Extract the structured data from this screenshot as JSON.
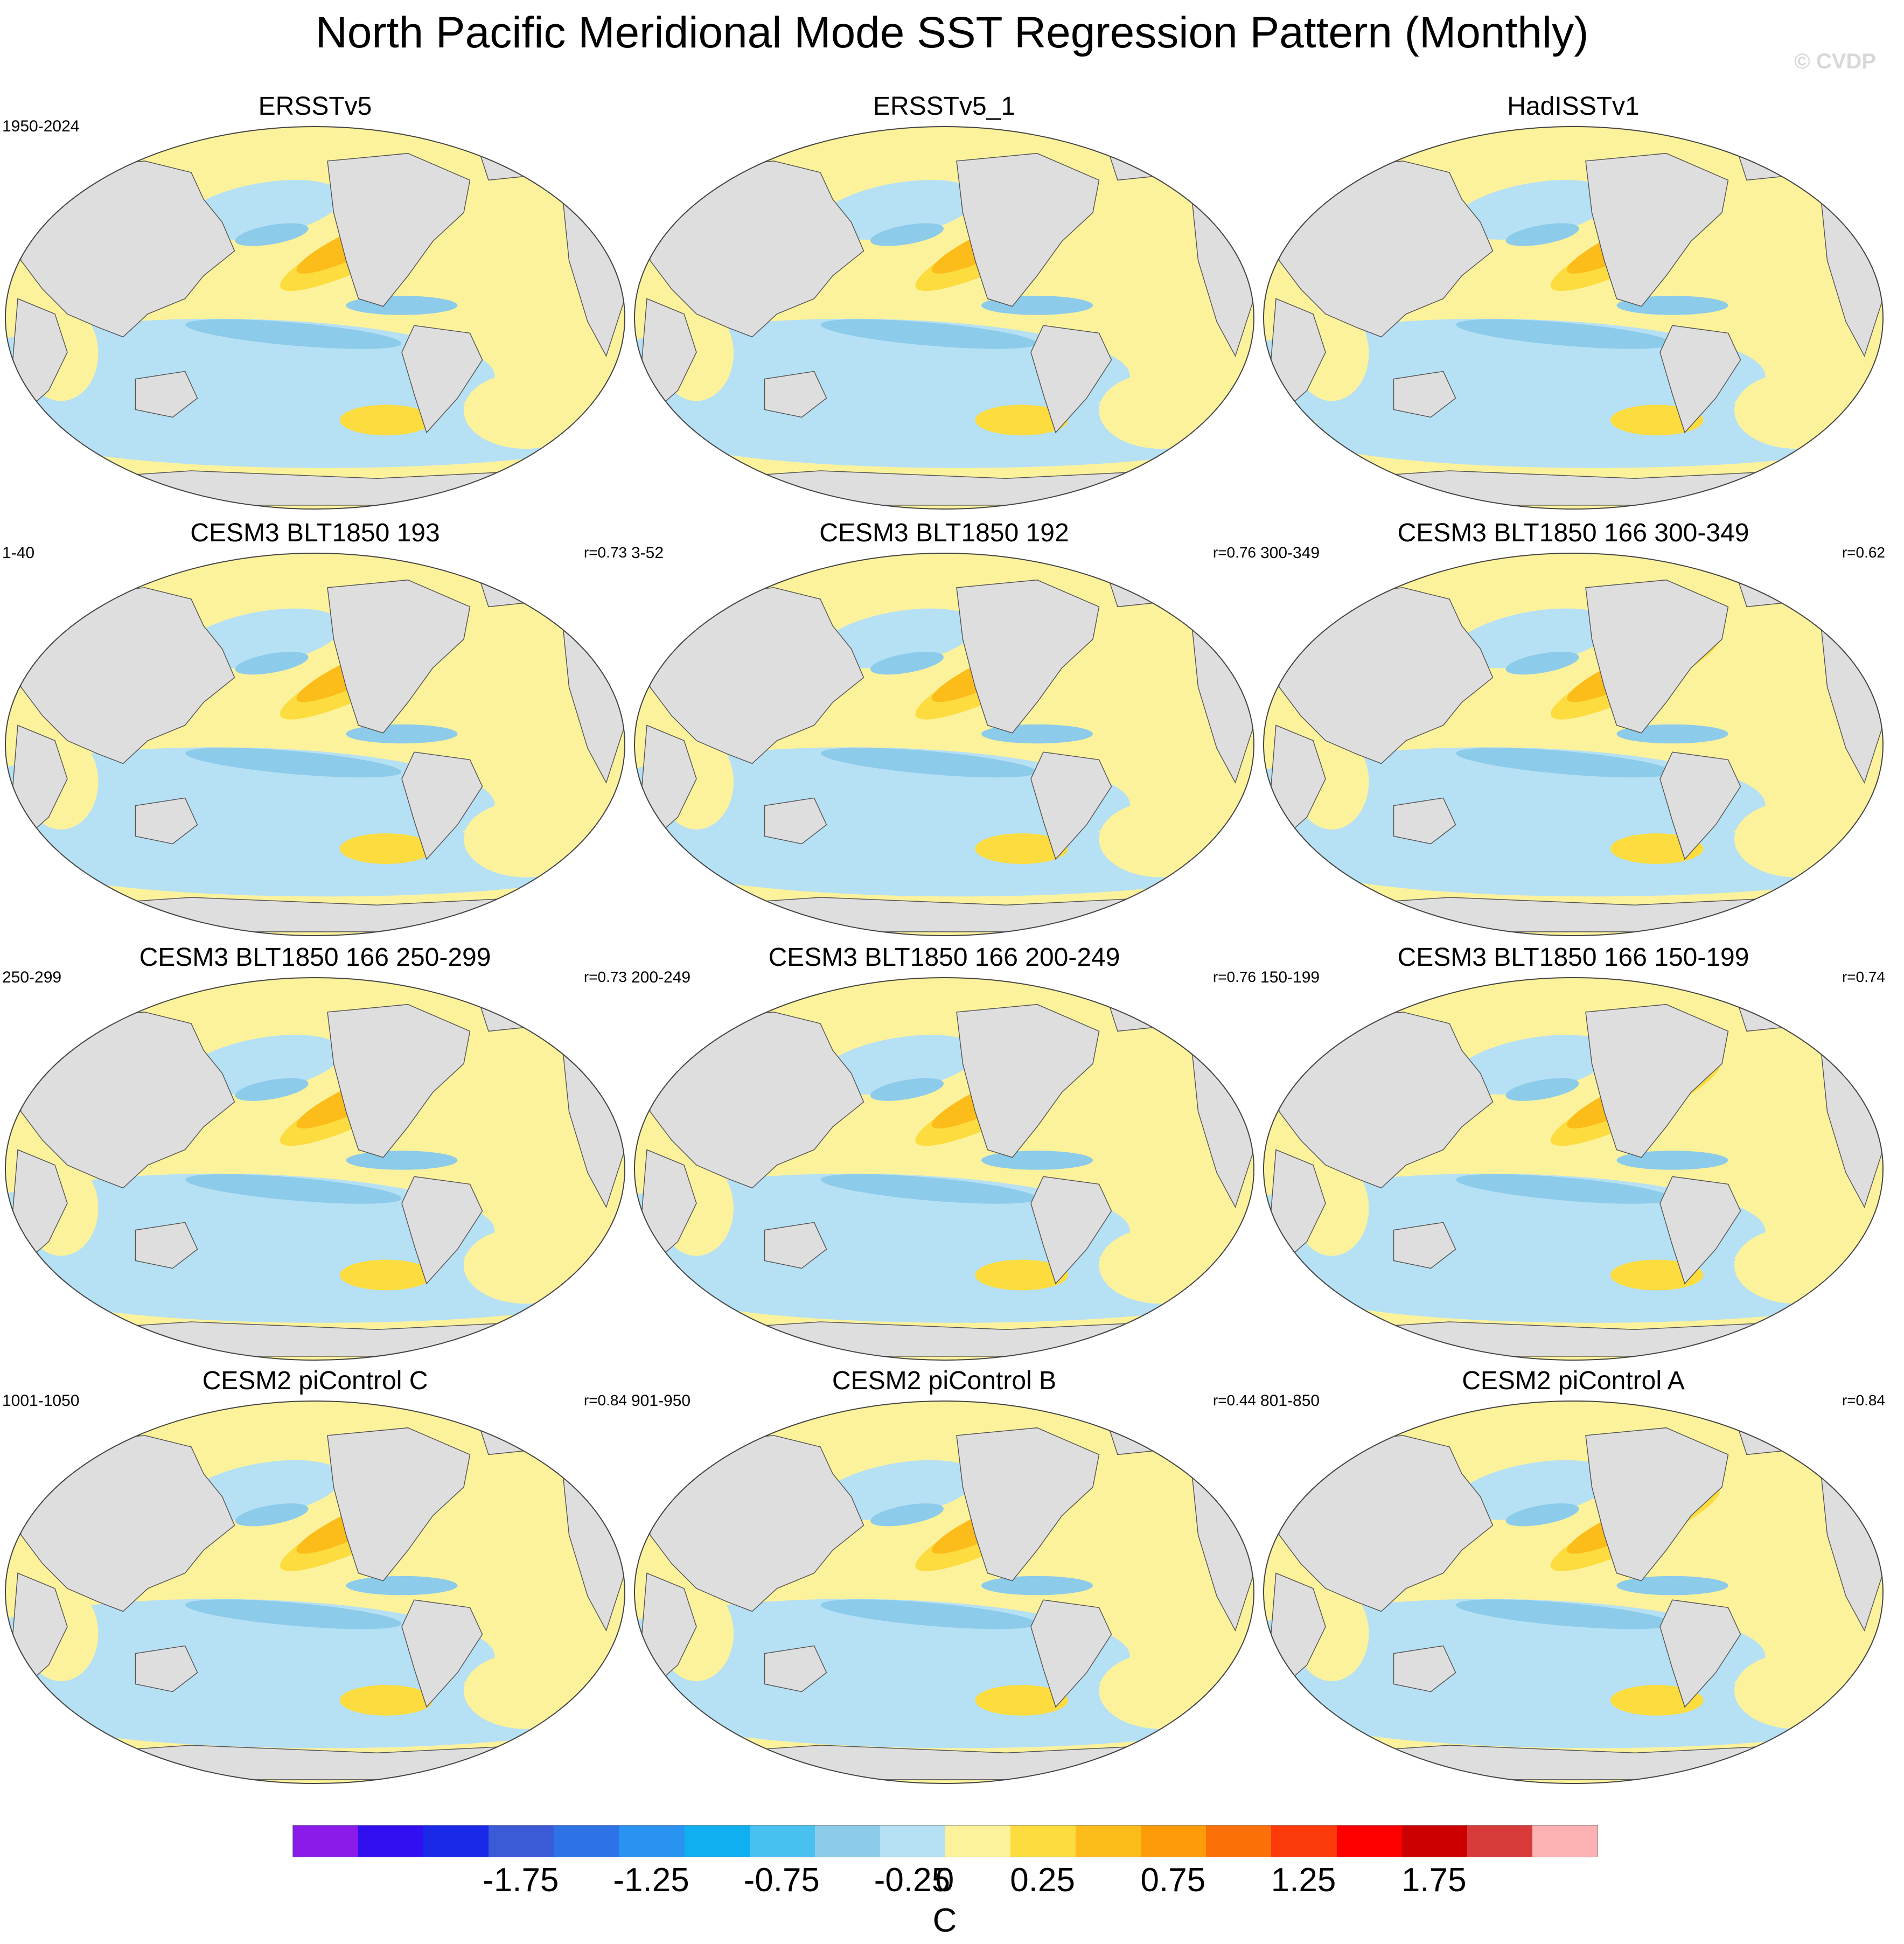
{
  "title": "North Pacific Meridional Mode SST Regression Pattern (Monthly)",
  "copyright": "© CVDP",
  "colors": {
    "land": "#dedede",
    "coast": "#555555",
    "palette": [
      "#8a1be8",
      "#3010f0",
      "#1a28e8",
      "#3a5ad8",
      "#2e72e8",
      "#2893f0",
      "#10b0f0",
      "#48c0f0",
      "#8ccbea",
      "#b6e0f4",
      "#fcf29c",
      "#fcdc3e",
      "#fcbc1a",
      "#fc9c08",
      "#fc700a",
      "#fc3a0a",
      "#fc0000",
      "#cc0000",
      "#d83a3a",
      "#fcb2b2"
    ]
  },
  "colorbar": {
    "unit": "C",
    "labels": [
      "-1.75",
      "-1.25",
      "-0.75",
      "-0.25",
      "0",
      "0.25",
      "0.75",
      "1.25",
      "1.75"
    ]
  },
  "panels": [
    {
      "title": "ERSSTv5",
      "period": "1950-2024",
      "corr": ""
    },
    {
      "title": "ERSSTv5_1",
      "period": "",
      "corr": ""
    },
    {
      "title": "HadISSTv1",
      "period": "",
      "corr": ""
    },
    {
      "title": "CESM3 BLT1850 193",
      "period": "1-40",
      "corr": "r=0.73"
    },
    {
      "title": "CESM3 BLT1850 192",
      "period": "3-52",
      "corr": "r=0.76"
    },
    {
      "title": "CESM3 BLT1850 166 300-349",
      "period": "300-349",
      "corr": "r=0.62"
    },
    {
      "title": "CESM3 BLT1850 166 250-299",
      "period": "250-299",
      "corr": "r=0.73"
    },
    {
      "title": "CESM3 BLT1850 166 200-249",
      "period": "200-249",
      "corr": "r=0.76"
    },
    {
      "title": "CESM3 BLT1850 166 150-199",
      "period": "150-199",
      "corr": "r=0.74"
    },
    {
      "title": "CESM2 piControl C",
      "period": "1001-1050",
      "corr": "r=0.84"
    },
    {
      "title": "CESM2 piControl B",
      "period": "901-950",
      "corr": "r=0.44"
    },
    {
      "title": "CESM2 piControl A",
      "period": "801-850",
      "corr": "r=0.84"
    }
  ]
}
